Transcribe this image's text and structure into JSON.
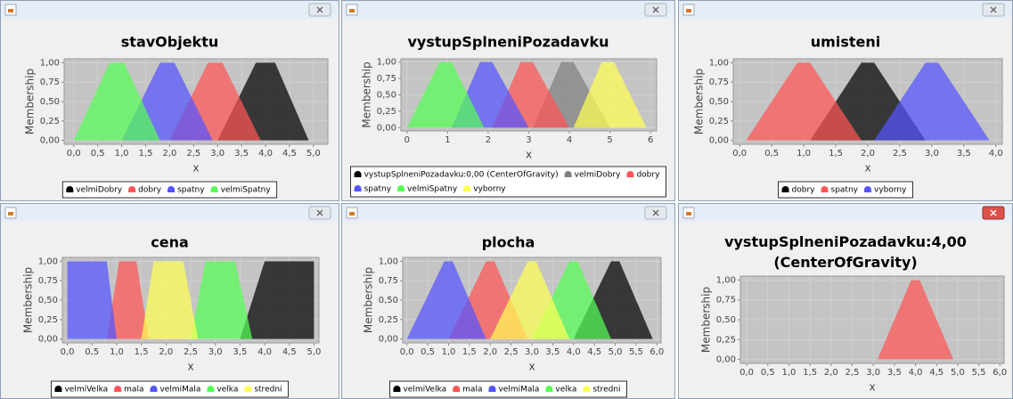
{
  "chart_data": [
    {
      "type": "area",
      "title": "stavObjektu",
      "xlabel": "x",
      "ylabel": "Membership",
      "xlim": [
        -0.2,
        5.3
      ],
      "ylim": [
        -0.05,
        1.05
      ],
      "grid": true,
      "xticks": [
        {
          "value": 0,
          "label": "0,0"
        },
        {
          "value": 0.5,
          "label": "0,5"
        },
        {
          "value": 1,
          "label": "1,0"
        },
        {
          "value": 1.5,
          "label": "1,5"
        },
        {
          "value": 2,
          "label": "2,0"
        },
        {
          "value": 2.5,
          "label": "2,5"
        },
        {
          "value": 3,
          "label": "3,0"
        },
        {
          "value": 3.5,
          "label": "3,5"
        },
        {
          "value": 4,
          "label": "4,0"
        },
        {
          "value": 4.5,
          "label": "4,5"
        },
        {
          "value": 5,
          "label": "5,0"
        }
      ],
      "yticks": [
        {
          "value": 0,
          "label": "0,00"
        },
        {
          "value": 0.25,
          "label": "0,25"
        },
        {
          "value": 0.5,
          "label": "0,50"
        },
        {
          "value": 0.75,
          "label": "0,75"
        },
        {
          "value": 1,
          "label": "1,00"
        }
      ],
      "series": [
        {
          "name": "velmiDobry",
          "color": "#000000",
          "x": [
            3.0,
            3.8,
            4.2,
            4.9
          ],
          "values": [
            0,
            1,
            1,
            0
          ]
        },
        {
          "name": "dobry",
          "color": "#ff5555",
          "x": [
            2.0,
            2.8,
            3.1,
            3.9
          ],
          "values": [
            0,
            1,
            1,
            0
          ]
        },
        {
          "name": "spatny",
          "color": "#5555ff",
          "x": [
            1.0,
            1.8,
            2.1,
            2.9
          ],
          "values": [
            0,
            1,
            1,
            0
          ]
        },
        {
          "name": "velmiSpatny",
          "color": "#55ff55",
          "x": [
            0,
            0.75,
            1.05,
            1.8
          ],
          "values": [
            0,
            1,
            1,
            0
          ]
        }
      ]
    },
    {
      "type": "area",
      "title": "vystupSplneniPozadavku",
      "xlabel": "x",
      "ylabel": "Membership",
      "xlim": [
        -0.15,
        6.15
      ],
      "ylim": [
        -0.05,
        1.05
      ],
      "grid": true,
      "xticks": [
        0,
        1,
        2,
        3,
        4,
        5,
        6
      ],
      "yticks": [
        {
          "value": 0,
          "label": "0,00"
        },
        {
          "value": 0.25,
          "label": "0,25"
        },
        {
          "value": 0.5,
          "label": "0,50"
        },
        {
          "value": 0.75,
          "label": "0,75"
        },
        {
          "value": 1,
          "label": "1,00"
        }
      ],
      "series": [
        {
          "name": "vystupSplneniPozadavku:0,00 (CenterOfGravity)",
          "color": "#000000",
          "x": [],
          "values": []
        },
        {
          "name": "velmiDobry",
          "color": "#808080",
          "x": [
            3.1,
            3.8,
            4.1,
            5.0
          ],
          "values": [
            0,
            1,
            1,
            0
          ]
        },
        {
          "name": "dobry",
          "color": "#ff5555",
          "x": [
            2.1,
            2.8,
            3.1,
            4.0
          ],
          "values": [
            0,
            1,
            1,
            0
          ]
        },
        {
          "name": "spatny",
          "color": "#5555ff",
          "x": [
            1.1,
            1.8,
            2.1,
            3.0
          ],
          "values": [
            0,
            1,
            1,
            0
          ]
        },
        {
          "name": "velmiSpatny",
          "color": "#55ff55",
          "x": [
            0,
            0.8,
            1.1,
            1.9
          ],
          "values": [
            0,
            1,
            1,
            0
          ]
        },
        {
          "name": "vyborny",
          "color": "#ffff55",
          "x": [
            4.1,
            4.8,
            5.1,
            5.9
          ],
          "values": [
            0,
            1,
            1,
            0
          ]
        }
      ]
    },
    {
      "type": "area",
      "title": "umisteni",
      "xlabel": "x",
      "ylabel": "Membership",
      "xlim": [
        -0.1,
        4.1
      ],
      "ylim": [
        -0.05,
        1.05
      ],
      "grid": true,
      "xticks": [
        {
          "value": 0,
          "label": "0,0"
        },
        {
          "value": 0.5,
          "label": "0,5"
        },
        {
          "value": 1,
          "label": "1,0"
        },
        {
          "value": 1.5,
          "label": "1,5"
        },
        {
          "value": 2,
          "label": "2,0"
        },
        {
          "value": 2.5,
          "label": "2,5"
        },
        {
          "value": 3,
          "label": "3,0"
        },
        {
          "value": 3.5,
          "label": "3,5"
        },
        {
          "value": 4,
          "label": "4,0"
        }
      ],
      "yticks": [
        {
          "value": 0,
          "label": "0,00"
        },
        {
          "value": 0.25,
          "label": "0,25"
        },
        {
          "value": 0.5,
          "label": "0,50"
        },
        {
          "value": 0.75,
          "label": "0,75"
        },
        {
          "value": 1,
          "label": "1,00"
        }
      ],
      "series": [
        {
          "name": "dobry",
          "color": "#000000",
          "x": [
            1.1,
            1.9,
            2.1,
            2.9
          ],
          "values": [
            0,
            1,
            1,
            0
          ]
        },
        {
          "name": "spatny",
          "color": "#ff5555",
          "x": [
            0.1,
            0.9,
            1.1,
            1.9
          ],
          "values": [
            0,
            1,
            1,
            0
          ]
        },
        {
          "name": "vyborny",
          "color": "#5555ff",
          "x": [
            2.1,
            2.9,
            3.1,
            3.9
          ],
          "values": [
            0,
            1,
            1,
            0
          ]
        }
      ]
    },
    {
      "type": "area",
      "title": "cena",
      "xlabel": "x",
      "ylabel": "Membership",
      "xlim": [
        -0.1,
        5.1
      ],
      "ylim": [
        -0.05,
        1.05
      ],
      "grid": true,
      "xticks": [
        {
          "value": 0,
          "label": "0,0"
        },
        {
          "value": 0.5,
          "label": "0,5"
        },
        {
          "value": 1,
          "label": "1,0"
        },
        {
          "value": 1.5,
          "label": "1,5"
        },
        {
          "value": 2,
          "label": "2,0"
        },
        {
          "value": 2.5,
          "label": "2,5"
        },
        {
          "value": 3,
          "label": "3,0"
        },
        {
          "value": 3.5,
          "label": "3,5"
        },
        {
          "value": 4,
          "label": "4,0"
        },
        {
          "value": 4.5,
          "label": "4,5"
        },
        {
          "value": 5,
          "label": "5,0"
        }
      ],
      "yticks": [
        {
          "value": 0,
          "label": "0,00"
        },
        {
          "value": 0.25,
          "label": "0,25"
        },
        {
          "value": 0.5,
          "label": "0,50"
        },
        {
          "value": 0.75,
          "label": "0,75"
        },
        {
          "value": 1,
          "label": "1,00"
        }
      ],
      "series": [
        {
          "name": "velmiVelka",
          "color": "#000000",
          "x": [
            3.5,
            4.0,
            5.0,
            5.0
          ],
          "values": [
            0,
            1,
            1,
            0
          ]
        },
        {
          "name": "mala",
          "color": "#ff5555",
          "x": [
            0.8,
            1.05,
            1.4,
            1.65
          ],
          "values": [
            0,
            1,
            1,
            0
          ]
        },
        {
          "name": "velmiMala",
          "color": "#5555ff",
          "x": [
            0,
            0,
            0.8,
            1.0
          ],
          "values": [
            0,
            1,
            1,
            0
          ]
        },
        {
          "name": "velka",
          "color": "#55ff55",
          "x": [
            2.5,
            2.8,
            3.4,
            3.75
          ],
          "values": [
            0,
            1,
            1,
            0
          ]
        },
        {
          "name": "stredni",
          "color": "#ffff55",
          "x": [
            1.5,
            1.75,
            2.35,
            2.65
          ],
          "values": [
            0,
            1,
            1,
            0
          ]
        }
      ]
    },
    {
      "type": "area",
      "title": "plocha",
      "xlabel": "x",
      "ylabel": "Membership",
      "xlim": [
        -0.1,
        6.1
      ],
      "ylim": [
        -0.05,
        1.05
      ],
      "grid": true,
      "xticks": [
        {
          "value": 0,
          "label": "0,0"
        },
        {
          "value": 0.5,
          "label": "0,5"
        },
        {
          "value": 1,
          "label": "1,0"
        },
        {
          "value": 1.5,
          "label": "1,5"
        },
        {
          "value": 2,
          "label": "2,0"
        },
        {
          "value": 2.5,
          "label": "2,5"
        },
        {
          "value": 3,
          "label": "3,0"
        },
        {
          "value": 3.5,
          "label": "3,5"
        },
        {
          "value": 4,
          "label": "4,0"
        },
        {
          "value": 4.5,
          "label": "4,5"
        },
        {
          "value": 5,
          "label": "5,0"
        },
        {
          "value": 5.5,
          "label": "5,5"
        },
        {
          "value": 6,
          "label": "6,0"
        }
      ],
      "yticks": [
        {
          "value": 0,
          "label": "0,00"
        },
        {
          "value": 0.25,
          "label": "0,25"
        },
        {
          "value": 0.5,
          "label": "0,50"
        },
        {
          "value": 0.75,
          "label": "0,75"
        },
        {
          "value": 1,
          "label": "1,00"
        }
      ],
      "series": [
        {
          "name": "velmiVelka",
          "color": "#000000",
          "x": [
            4.0,
            4.9,
            5.1,
            5.9
          ],
          "values": [
            0,
            1,
            1,
            0
          ]
        },
        {
          "name": "mala",
          "color": "#ff5555",
          "x": [
            1.0,
            1.9,
            2.1,
            2.9
          ],
          "values": [
            0,
            1,
            1,
            0
          ]
        },
        {
          "name": "velmiMala",
          "color": "#5555ff",
          "x": [
            0,
            0.9,
            1.1,
            1.9
          ],
          "values": [
            0,
            1,
            1,
            0
          ]
        },
        {
          "name": "velka",
          "color": "#55ff55",
          "x": [
            3.0,
            3.9,
            4.1,
            4.9
          ],
          "values": [
            0,
            1,
            1,
            0
          ]
        },
        {
          "name": "stredni",
          "color": "#ffff55",
          "x": [
            2.0,
            2.9,
            3.1,
            3.9
          ],
          "values": [
            0,
            1,
            1,
            0
          ]
        }
      ]
    },
    {
      "type": "area",
      "title": "vystupSplneniPozadavku:4,00 (CenterOfGravity)",
      "xlabel": "x",
      "ylabel": "Membership",
      "xlim": [
        -0.15,
        6.1
      ],
      "ylim": [
        -0.05,
        1.05
      ],
      "grid": true,
      "xticks": [
        {
          "value": 0,
          "label": "0,0"
        },
        {
          "value": 0.5,
          "label": "0,5"
        },
        {
          "value": 1,
          "label": "1,0"
        },
        {
          "value": 1.5,
          "label": "1,5"
        },
        {
          "value": 2,
          "label": "2,0"
        },
        {
          "value": 2.5,
          "label": "2,5"
        },
        {
          "value": 3,
          "label": "3,0"
        },
        {
          "value": 3.5,
          "label": "3,5"
        },
        {
          "value": 4,
          "label": "4,0"
        },
        {
          "value": 4.5,
          "label": "4,5"
        },
        {
          "value": 5,
          "label": "5,0"
        },
        {
          "value": 5.5,
          "label": "5,5"
        },
        {
          "value": 6,
          "label": "6,0"
        }
      ],
      "yticks": [
        {
          "value": 0,
          "label": "0,00"
        },
        {
          "value": 0.25,
          "label": "0,25"
        },
        {
          "value": 0.5,
          "label": "0,50"
        },
        {
          "value": 0.75,
          "label": "0,75"
        },
        {
          "value": 1,
          "label": "1,00"
        }
      ],
      "series": [
        {
          "color": "#ff5555",
          "x": [
            3.1,
            3.9,
            4.1,
            4.9
          ],
          "values": [
            0,
            1,
            1,
            0
          ]
        }
      ]
    }
  ]
}
